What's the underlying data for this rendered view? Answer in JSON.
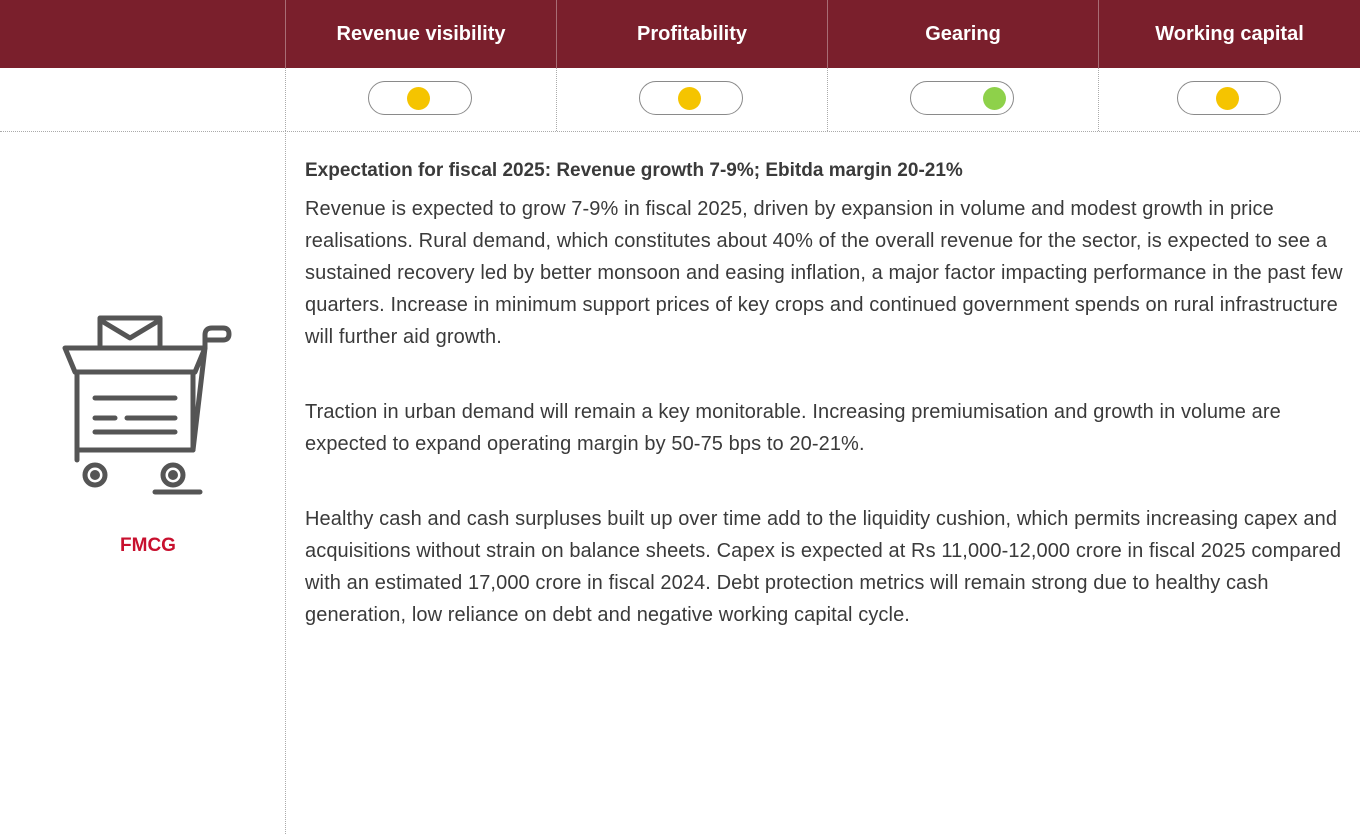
{
  "header": {
    "columns": [
      "Revenue visibility",
      "Profitability",
      "Gearing",
      "Working capital"
    ]
  },
  "indicators": [
    {
      "color": "#f5c400",
      "position": "center"
    },
    {
      "color": "#f5c400",
      "position": "center"
    },
    {
      "color": "#8ed14a",
      "position": "right"
    },
    {
      "color": "#f5c400",
      "position": "center"
    }
  ],
  "sector": {
    "label": "FMCG"
  },
  "content": {
    "heading": "Expectation for fiscal 2025: Revenue growth 7-9%; Ebitda margin 20-21%",
    "paragraphs": [
      "Revenue is expected to grow 7-9% in fiscal 2025, driven by expansion in volume and modest growth in price realisations. Rural demand, which constitutes about 40% of the overall revenue for the sector, is expected to see a sustained recovery led by better monsoon and easing inflation, a major factor impacting performance in the past few quarters. Increase in minimum support prices of key crops and continued government spends on rural infrastructure will further aid growth.",
      "Traction in urban demand will remain a key monitorable. Increasing premiumisation and growth in volume are expected to expand operating margin by 50-75 bps to 20-21%.",
      "Healthy cash and cash surpluses built up over time add to the liquidity cushion, which permits increasing capex and acquisitions without strain on balance sheets. Capex is expected at Rs 11,000-12,000 crore in fiscal 2025 compared with an estimated 17,000 crore in fiscal 2024. Debt protection metrics will remain strong due to healthy cash generation, low reliance on debt and negative working capital cycle."
    ]
  }
}
